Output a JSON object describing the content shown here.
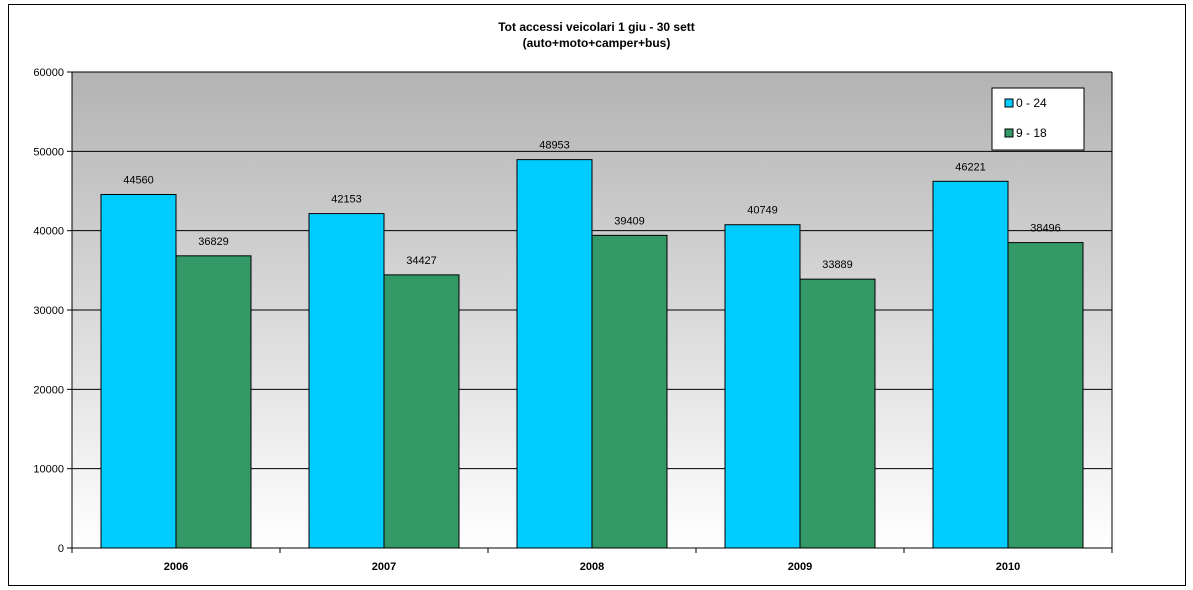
{
  "chart_data": {
    "type": "bar",
    "title": "Tot accessi veicolari 1 giu - 30 sett",
    "subtitle": "(auto+moto+camper+bus)",
    "categories": [
      "2006",
      "2007",
      "2008",
      "2009",
      "2010"
    ],
    "series": [
      {
        "name": "0 - 24",
        "color": "#00CCFF",
        "values": [
          44560,
          42153,
          48953,
          40749,
          46221
        ]
      },
      {
        "name": "9 - 18",
        "color": "#339966",
        "values": [
          36829,
          34427,
          39409,
          33889,
          38496
        ]
      }
    ],
    "yticks": [
      "0",
      "10000",
      "20000",
      "30000",
      "40000",
      "50000",
      "60000"
    ],
    "ylim": [
      0,
      60000
    ],
    "grid": true,
    "legend_position": "top-right",
    "plot_background": "gradient gray-to-white"
  }
}
